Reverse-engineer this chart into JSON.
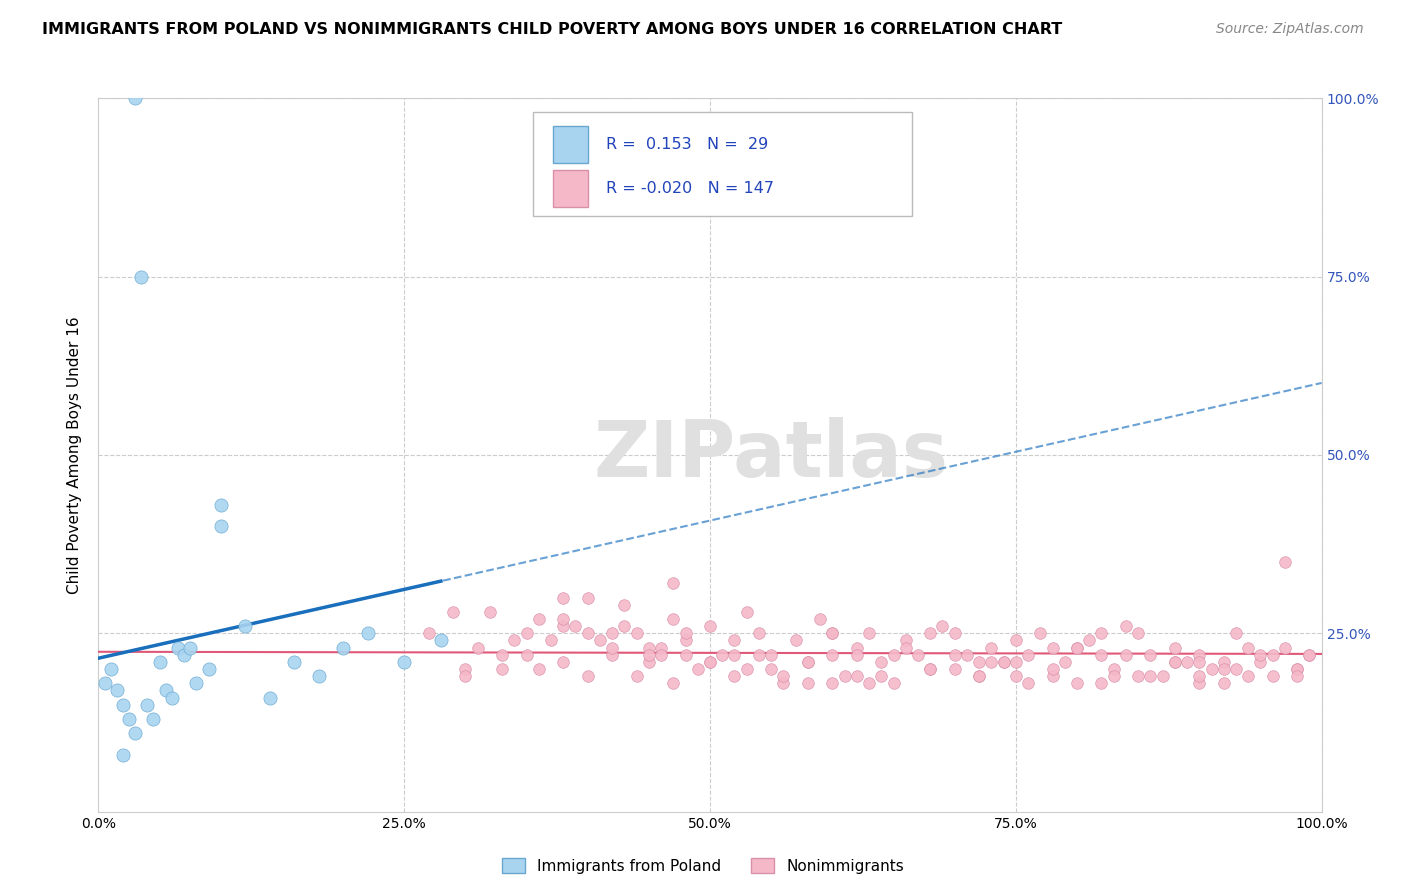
{
  "title": "IMMIGRANTS FROM POLAND VS NONIMMIGRANTS CHILD POVERTY AMONG BOYS UNDER 16 CORRELATION CHART",
  "source": "Source: ZipAtlas.com",
  "ylabel": "Child Poverty Among Boys Under 16",
  "legend_labels": [
    "Immigrants from Poland",
    "Nonimmigrants"
  ],
  "r_blue": 0.153,
  "n_blue": 29,
  "r_pink": -0.02,
  "n_pink": 147,
  "blue_color": "#a8d4f0",
  "blue_line_color": "#1a6fbd",
  "pink_color": "#f5b8c8",
  "pink_line_color": "#e05878",
  "watermark": "ZIPatlas",
  "blue_x": [
    0.5,
    1.0,
    1.5,
    2.0,
    2.5,
    3.0,
    3.5,
    4.0,
    4.5,
    5.0,
    5.5,
    6.0,
    6.5,
    7.0,
    7.5,
    8.0,
    9.0,
    10.0,
    12.0,
    14.0,
    16.0,
    18.0,
    20.0,
    22.0,
    25.0,
    28.0,
    3.0,
    10.0,
    2.0
  ],
  "blue_y": [
    18,
    20,
    17,
    15,
    13,
    11,
    75,
    15,
    13,
    21,
    17,
    16,
    23,
    22,
    23,
    18,
    20,
    43,
    26,
    16,
    21,
    19,
    23,
    25,
    21,
    24,
    100,
    40,
    8
  ],
  "pink_x": [
    27,
    29,
    31,
    33,
    35,
    36,
    37,
    38,
    38,
    39,
    40,
    41,
    42,
    43,
    44,
    45,
    46,
    47,
    47,
    48,
    49,
    50,
    51,
    52,
    53,
    54,
    55,
    56,
    57,
    58,
    59,
    60,
    61,
    62,
    63,
    64,
    65,
    66,
    67,
    68,
    69,
    70,
    71,
    72,
    73,
    74,
    75,
    76,
    77,
    78,
    79,
    80,
    81,
    82,
    83,
    84,
    85,
    86,
    87,
    88,
    89,
    90,
    91,
    92,
    93,
    94,
    95,
    96,
    97,
    98,
    99,
    30,
    32,
    34,
    36,
    38,
    40,
    42,
    44,
    46,
    48,
    50,
    52,
    54,
    56,
    58,
    60,
    62,
    64,
    66,
    68,
    70,
    72,
    74,
    76,
    78,
    80,
    82,
    84,
    86,
    88,
    90,
    92,
    94,
    96,
    98,
    35,
    45,
    55,
    65,
    75,
    85,
    95,
    40,
    50,
    60,
    70,
    80,
    90,
    99,
    30,
    45,
    60,
    75,
    90,
    33,
    43,
    53,
    63,
    73,
    83,
    93,
    38,
    48,
    58,
    68,
    78,
    88,
    98,
    42,
    52,
    62,
    72,
    82,
    92,
    47,
    97
  ],
  "pink_y": [
    25,
    28,
    23,
    20,
    22,
    27,
    24,
    30,
    21,
    26,
    19,
    24,
    22,
    29,
    25,
    21,
    23,
    27,
    18,
    24,
    20,
    26,
    22,
    19,
    28,
    25,
    22,
    18,
    24,
    21,
    27,
    22,
    19,
    23,
    25,
    21,
    18,
    24,
    22,
    20,
    26,
    25,
    22,
    19,
    23,
    21,
    24,
    22,
    25,
    19,
    21,
    18,
    24,
    22,
    20,
    26,
    25,
    22,
    19,
    23,
    21,
    22,
    20,
    18,
    25,
    23,
    21,
    19,
    23,
    20,
    22,
    20,
    28,
    24,
    20,
    26,
    30,
    23,
    19,
    22,
    25,
    21,
    24,
    22,
    19,
    21,
    25,
    22,
    19,
    23,
    25,
    22,
    19,
    21,
    18,
    20,
    23,
    25,
    22,
    19,
    21,
    18,
    21,
    19,
    22,
    20,
    25,
    23,
    20,
    22,
    21,
    19,
    22,
    25,
    21,
    18,
    20,
    23,
    19,
    22,
    19,
    22,
    25,
    19,
    21,
    22,
    26,
    20,
    18,
    21,
    19,
    20,
    27,
    22,
    18,
    20,
    23,
    21,
    19,
    25,
    22,
    19,
    21,
    18,
    20,
    32,
    35
  ]
}
